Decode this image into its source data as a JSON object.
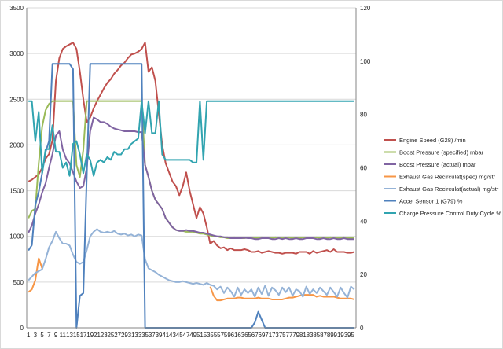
{
  "chart_data": {
    "type": "line",
    "title": "",
    "xlabel": "",
    "ylabel": "",
    "y2label": "",
    "x": [
      1,
      2,
      3,
      4,
      5,
      6,
      7,
      8,
      9,
      10,
      11,
      12,
      13,
      14,
      15,
      16,
      17,
      18,
      19,
      20,
      21,
      22,
      23,
      24,
      25,
      26,
      27,
      28,
      29,
      30,
      31,
      32,
      33,
      34,
      35,
      36,
      37,
      38,
      39,
      40,
      41,
      42,
      43,
      44,
      45,
      46,
      47,
      48,
      49,
      50,
      51,
      52,
      53,
      54,
      55,
      56,
      57,
      58,
      59,
      60,
      61,
      62,
      63,
      64,
      65,
      66,
      67,
      68,
      69,
      70,
      71,
      72,
      73,
      74,
      75,
      76,
      77,
      78,
      79,
      80,
      81,
      82,
      83,
      84,
      85,
      86,
      87,
      88,
      89,
      90,
      91,
      92,
      93,
      94,
      95,
      96
    ],
    "x_tick_labels": [
      "1",
      "3",
      "5",
      "7",
      "9",
      "11",
      "13",
      "15",
      "17",
      "19",
      "21",
      "23",
      "25",
      "27",
      "29",
      "31",
      "33",
      "35",
      "37",
      "39",
      "41",
      "43",
      "45",
      "47",
      "49",
      "51",
      "53",
      "55",
      "57",
      "59",
      "61",
      "63",
      "65",
      "67",
      "69",
      "71",
      "73",
      "75",
      "77",
      "79",
      "81",
      "83",
      "85",
      "87",
      "89",
      "91",
      "93",
      "95"
    ],
    "ylim": [
      0,
      3500
    ],
    "y_ticks": [
      "0",
      "500",
      "1000",
      "1500",
      "2000",
      "2500",
      "3000",
      "3500"
    ],
    "y2lim": [
      0,
      120
    ],
    "y2_ticks": [
      "0",
      "20",
      "40",
      "60",
      "80",
      "100",
      "120"
    ],
    "grid": "horizontal",
    "legend_position": "right",
    "series": [
      {
        "name": "Engine Speed (G28)  /min",
        "axis": "left",
        "color": "#c0504d",
        "values": [
          1600,
          1620,
          1650,
          1680,
          1750,
          1850,
          1900,
          2050,
          2700,
          2950,
          3050,
          3080,
          3100,
          3120,
          3050,
          2800,
          2500,
          2250,
          2300,
          2400,
          2480,
          2550,
          2620,
          2680,
          2720,
          2780,
          2820,
          2870,
          2900,
          2950,
          2990,
          3000,
          3020,
          3050,
          3120,
          2800,
          2850,
          2700,
          2350,
          2000,
          1800,
          1700,
          1600,
          1550,
          1450,
          1550,
          1700,
          1500,
          1350,
          1200,
          1320,
          1250,
          1100,
          920,
          950,
          900,
          870,
          880,
          850,
          870,
          850,
          850,
          850,
          860,
          850,
          830,
          830,
          840,
          820,
          830,
          840,
          830,
          820,
          820,
          810,
          820,
          820,
          820,
          810,
          830,
          830,
          830,
          810,
          840,
          820,
          830,
          840,
          850,
          830,
          860,
          830,
          830,
          830,
          820,
          820,
          830
        ]
      },
      {
        "name": "Boost Pressure (specified)  mbar",
        "axis": "left",
        "color": "#9bbb59",
        "values": [
          1200,
          1280,
          1300,
          1800,
          2200,
          2380,
          2450,
          2480,
          2480,
          2480,
          2480,
          2480,
          2480,
          2480,
          1780,
          1650,
          1950,
          2480,
          2480,
          2480,
          2480,
          2480,
          2480,
          2480,
          2480,
          2480,
          2480,
          2480,
          2480,
          2480,
          2480,
          2480,
          2480,
          2480,
          1780,
          1650,
          1500,
          1400,
          1350,
          1300,
          1200,
          1150,
          1100,
          1070,
          1060,
          1060,
          1050,
          1050,
          1050,
          1040,
          1030,
          1030,
          1020,
          1010,
          1000,
          1000,
          990,
          990,
          980,
          980,
          990,
          980,
          980,
          980,
          990,
          980,
          980,
          980,
          990,
          980,
          980,
          980,
          990,
          980,
          980,
          980,
          990,
          980,
          980,
          980,
          990,
          980,
          980,
          980,
          990,
          980,
          980,
          980,
          990,
          980,
          980,
          980,
          990,
          980,
          980,
          980
        ]
      },
      {
        "name": "Boost Pressure (actual)  mbar",
        "axis": "left",
        "color": "#8064a2",
        "values": [
          1040,
          1120,
          1250,
          1350,
          1480,
          1580,
          1750,
          1900,
          2100,
          2150,
          1950,
          1850,
          1800,
          1700,
          1600,
          1530,
          1550,
          1750,
          2150,
          2300,
          2280,
          2250,
          2250,
          2230,
          2200,
          2180,
          2170,
          2160,
          2150,
          2150,
          2150,
          2150,
          2140,
          2140,
          1780,
          1650,
          1500,
          1400,
          1350,
          1300,
          1200,
          1150,
          1100,
          1070,
          1060,
          1060,
          1070,
          1060,
          1060,
          1050,
          1040,
          1040,
          1030,
          1020,
          1010,
          1000,
          1000,
          990,
          990,
          980,
          980,
          980,
          980,
          985,
          980,
          980,
          970,
          970,
          980,
          980,
          980,
          970,
          970,
          980,
          970,
          980,
          970,
          970,
          980,
          970,
          970,
          980,
          980,
          980,
          970,
          970,
          980,
          970,
          970,
          980,
          970,
          970,
          980,
          970,
          970,
          970
        ]
      },
      {
        "name": "Exhaust Gas  Recirculat(spec)  mg/str",
        "axis": "left",
        "color": "#f79646",
        "values": [
          390,
          420,
          520,
          760,
          650,
          null,
          null,
          null,
          null,
          null,
          null,
          null,
          null,
          null,
          null,
          null,
          null,
          null,
          null,
          null,
          null,
          null,
          null,
          null,
          null,
          null,
          null,
          null,
          null,
          null,
          null,
          null,
          null,
          null,
          null,
          null,
          null,
          null,
          null,
          null,
          null,
          null,
          null,
          null,
          null,
          null,
          null,
          null,
          null,
          null,
          null,
          null,
          null,
          450,
          350,
          300,
          300,
          310,
          320,
          320,
          320,
          330,
          330,
          320,
          320,
          320,
          320,
          330,
          320,
          320,
          320,
          310,
          310,
          310,
          310,
          320,
          330,
          330,
          340,
          350,
          360,
          360,
          360,
          360,
          340,
          350,
          340,
          340,
          340,
          340,
          330,
          320,
          320,
          320,
          320,
          310
        ]
      },
      {
        "name": "Exhaust Gas  Recirculat(actual)  mg/str",
        "axis": "left",
        "color": "#95b3d7",
        "values": [
          520,
          560,
          600,
          620,
          640,
          750,
          880,
          950,
          1050,
          980,
          920,
          920,
          900,
          800,
          720,
          700,
          720,
          850,
          1000,
          1050,
          1080,
          1050,
          1040,
          1050,
          1040,
          1060,
          1030,
          1020,
          1030,
          1010,
          1020,
          1000,
          1020,
          1010,
          750,
          650,
          630,
          610,
          580,
          560,
          540,
          520,
          510,
          500,
          500,
          510,
          500,
          490,
          480,
          490,
          480,
          470,
          490,
          470,
          460,
          420,
          450,
          380,
          440,
          400,
          340,
          440,
          360,
          420,
          380,
          420,
          340,
          440,
          370,
          460,
          350,
          440,
          410,
          360,
          440,
          390,
          440,
          350,
          420,
          400,
          340,
          450,
          370,
          420,
          380,
          440,
          400,
          360,
          440,
          390,
          340,
          440,
          380,
          330,
          450,
          420
        ]
      },
      {
        "name": "Accel Sensor 1 (G79)  %",
        "axis": "right",
        "color": "#4f81bd",
        "values": [
          29,
          31,
          46,
          51,
          58,
          66,
          70,
          99,
          99,
          99,
          99,
          99,
          99,
          97,
          0,
          12,
          13,
          57,
          99,
          99,
          99,
          99,
          99,
          99,
          99,
          99,
          99,
          99,
          99,
          99,
          99,
          99,
          99,
          99,
          0,
          0,
          0,
          0,
          0,
          0,
          0,
          0,
          0,
          0,
          0,
          0,
          0,
          0,
          0,
          0,
          0,
          0,
          0,
          0,
          0,
          0,
          0,
          0,
          0,
          0,
          0,
          0,
          0,
          0,
          0,
          0,
          2,
          6,
          3,
          0,
          0,
          0,
          0,
          0,
          0,
          0,
          0,
          0,
          0,
          0,
          0,
          0,
          0,
          0,
          0,
          0,
          0,
          0,
          0,
          0,
          0,
          0,
          0,
          0,
          0,
          0
        ]
      },
      {
        "name": "Charge Pressure Control Duty Cycle  %",
        "axis": "right",
        "color": "#31a4b0",
        "values": [
          85,
          85,
          70,
          81,
          58,
          67,
          67,
          76,
          66,
          66,
          60,
          62,
          57,
          69,
          70,
          65,
          58,
          65,
          63,
          57,
          62,
          63,
          62,
          64,
          63,
          66,
          65,
          65,
          67,
          67,
          69,
          70,
          71,
          85,
          73,
          85,
          73,
          73,
          85,
          65,
          63,
          63,
          63,
          63,
          63,
          63,
          63,
          63,
          62,
          62,
          85,
          63,
          85,
          85,
          85,
          85,
          85,
          85,
          85,
          85,
          85,
          85,
          85,
          85,
          85,
          85,
          85,
          85,
          85,
          85,
          85,
          85,
          85,
          85,
          85,
          85,
          85,
          85,
          85,
          85,
          85,
          85,
          85,
          85,
          85,
          85,
          85,
          85,
          85,
          85,
          85,
          85,
          85,
          85,
          85,
          85
        ]
      }
    ]
  }
}
